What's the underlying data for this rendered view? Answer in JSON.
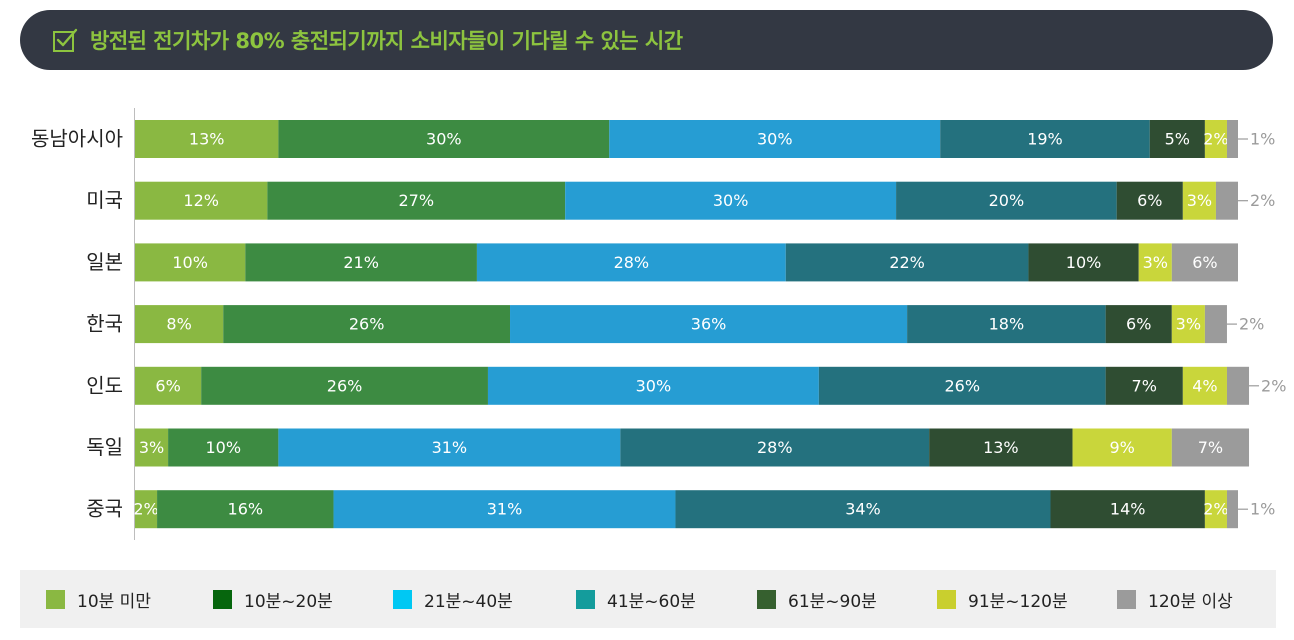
{
  "title": "방전된 전기차가 80% 충전되기까지 소비자들이 기다릴 수 있는 시간",
  "colors": {
    "title_bg": "#333843",
    "title_text": "#8dc43f",
    "legend_bg": "#f0f0f0"
  },
  "chart_data": {
    "type": "bar",
    "orientation": "horizontal-stacked-100",
    "title": "방전된 전기차가 80% 충전되기까지 소비자들이 기다릴 수 있는 시간",
    "categories": [
      "동남아시아",
      "미국",
      "일본",
      "한국",
      "인도",
      "독일",
      "중국"
    ],
    "value_suffix": "%",
    "series": [
      {
        "name": "10분 미만",
        "bar_color": "#8ab842",
        "legend_color": "#8ab842",
        "label_color": "#ffffff",
        "values": [
          13,
          12,
          10,
          8,
          6,
          3,
          2
        ]
      },
      {
        "name": "10분~20분",
        "bar_color": "#3d8b42",
        "legend_color": "#06660d",
        "label_color": "#ffffff",
        "values": [
          30,
          27,
          21,
          26,
          26,
          10,
          16
        ]
      },
      {
        "name": "21분~40분",
        "bar_color": "#269dd3",
        "legend_color": "#00c8f3",
        "label_color": "#ffffff",
        "values": [
          30,
          30,
          28,
          36,
          30,
          31,
          31
        ]
      },
      {
        "name": "41분~60분",
        "bar_color": "#24717e",
        "legend_color": "#149c9c",
        "label_color": "#ffffff",
        "values": [
          19,
          20,
          22,
          18,
          26,
          28,
          34
        ]
      },
      {
        "name": "61분~90분",
        "bar_color": "#2f4d32",
        "legend_color": "#36602f",
        "label_color": "#ffffff",
        "values": [
          5,
          6,
          10,
          6,
          7,
          13,
          14
        ]
      },
      {
        "name": "91분~120분",
        "bar_color": "#c9d63b",
        "legend_color": "#c9cf2e",
        "label_color": "#ffffff",
        "values": [
          2,
          3,
          3,
          3,
          4,
          9,
          2
        ]
      },
      {
        "name": "120분 이상",
        "bar_color": "#9b9b9b",
        "legend_color": "#9b9b9b",
        "label_color": "#ffffff",
        "values": [
          1,
          2,
          6,
          2,
          2,
          7,
          1
        ]
      }
    ],
    "outside_labels": [
      {
        "category": "동남아시아",
        "series": "120분 이상",
        "text": "1%"
      },
      {
        "category": "미국",
        "series": "120분 이상",
        "text": "2%"
      },
      {
        "category": "한국",
        "series": "120분 이상",
        "text": "2%"
      },
      {
        "category": "인도",
        "series": "120분 이상",
        "text": "2%"
      },
      {
        "category": "중국",
        "series": "120분 이상",
        "text": "1%"
      }
    ],
    "xlim": [
      0,
      100
    ],
    "legend_position": "bottom"
  }
}
